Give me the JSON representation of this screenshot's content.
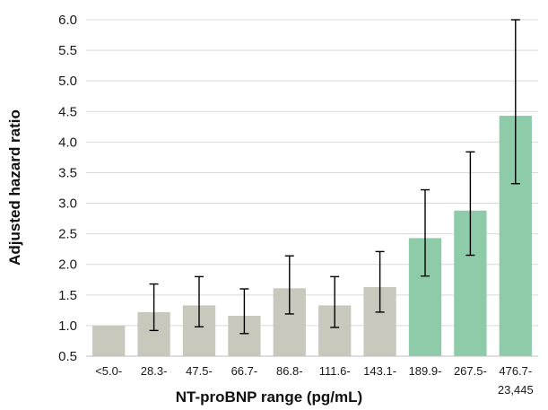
{
  "chart_data": {
    "type": "bar",
    "title": "",
    "xlabel": "NT-proBNP range (pg/mL)",
    "ylabel": "Adjusted hazard ratio",
    "ylim": [
      0.5,
      6.0
    ],
    "yticks": [
      "0.5",
      "1.0",
      "1.5",
      "2.0",
      "2.5",
      "3.0",
      "3.5",
      "4.0",
      "4.5",
      "5.0",
      "5.5",
      "6.0"
    ],
    "ytick_values": [
      0.5,
      1.0,
      1.5,
      2.0,
      2.5,
      3.0,
      3.5,
      4.0,
      4.5,
      5.0,
      5.5,
      6.0
    ],
    "grid": true,
    "categories": [
      "<5.0-",
      "28.3-",
      "47.5-",
      "66.7-",
      "86.8-",
      "111.6-",
      "143.1-",
      "189.9-",
      "267.5-",
      "476.7-"
    ],
    "category_sublabels": [
      "",
      "",
      "",
      "",
      "",
      "",
      "",
      "",
      "",
      "23,445"
    ],
    "values": [
      1.0,
      1.22,
      1.33,
      1.16,
      1.61,
      1.33,
      1.63,
      2.43,
      2.88,
      4.43
    ],
    "error_low": [
      null,
      0.92,
      0.98,
      0.87,
      1.19,
      0.97,
      1.22,
      1.81,
      2.15,
      3.32
    ],
    "error_high": [
      null,
      1.68,
      1.8,
      1.6,
      2.14,
      1.8,
      2.21,
      3.22,
      3.84,
      6.0
    ],
    "colors": [
      "#c8c8bc",
      "#c8c8bc",
      "#c8c8bc",
      "#c8c8bc",
      "#c8c8bc",
      "#c8c8bc",
      "#c8c8bc",
      "#8ecba9",
      "#8ecba9",
      "#8ecba9"
    ]
  }
}
